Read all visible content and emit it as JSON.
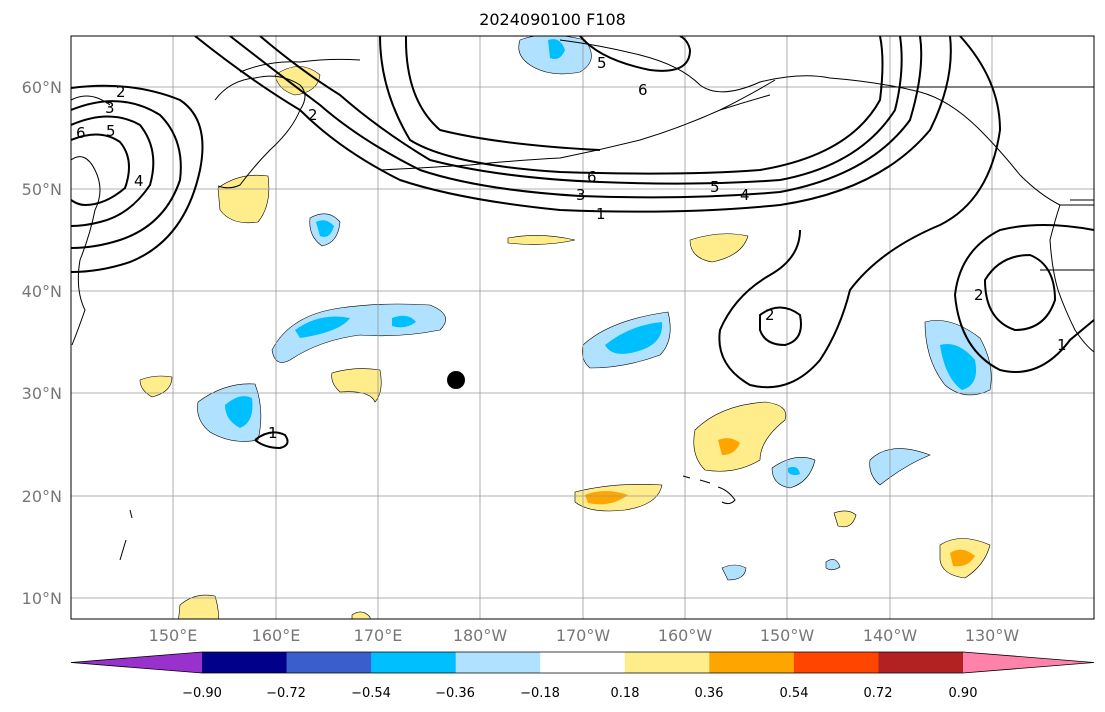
{
  "title": "2024090100 F108",
  "lat_labels": [
    "60°N",
    "50°N",
    "40°N",
    "30°N",
    "20°N",
    "10°N"
  ],
  "lon_labels": [
    "150°E",
    "160°E",
    "170°E",
    "180°W",
    "170°W",
    "160°W",
    "150°W",
    "140°W",
    "130°W"
  ],
  "colorbar": {
    "ticks": [
      "−0.90",
      "−0.72",
      "−0.54",
      "−0.36",
      "−0.18",
      "0.18",
      "0.36",
      "0.54",
      "0.72",
      "0.90"
    ],
    "colors": [
      "#9932CC",
      "#00008B",
      "#3A5FCD",
      "#00BFFF",
      "#B0E2FF",
      "#FFFFFF",
      "#FFEC8B",
      "#FFA500",
      "#FF4500",
      "#B22222",
      "#FF82AB"
    ]
  },
  "contour_labels": [
    "2",
    "3",
    "6",
    "5",
    "4",
    "2",
    "6",
    "5",
    "6",
    "3",
    "5",
    "4",
    "1",
    "2",
    "2",
    "1",
    "1"
  ],
  "marker": "black-dot"
}
